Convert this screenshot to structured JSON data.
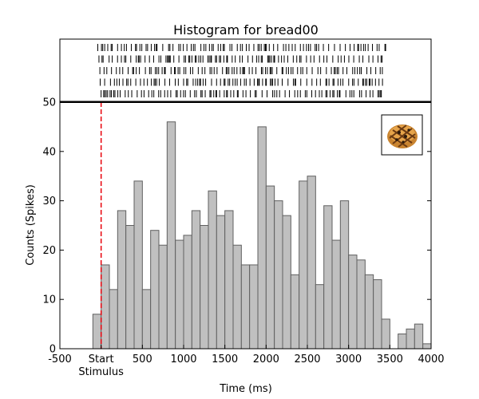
{
  "chart_data": {
    "type": "bar",
    "title": "Histogram for bread00",
    "xlabel": "Time (ms)",
    "ylabel": "Counts (Spikes)",
    "xlim": [
      -500,
      4000
    ],
    "ylim": [
      0,
      50
    ],
    "bin_width": 100,
    "x_ticks": [
      {
        "value": -500,
        "label": "-500"
      },
      {
        "value": 0,
        "label": "Start"
      },
      {
        "value": 500,
        "label": "500"
      },
      {
        "value": 1000,
        "label": "1000"
      },
      {
        "value": 1500,
        "label": "1500"
      },
      {
        "value": 2000,
        "label": "2000"
      },
      {
        "value": 2500,
        "label": "2500"
      },
      {
        "value": 3000,
        "label": "3000"
      },
      {
        "value": 3500,
        "label": "3500"
      },
      {
        "value": 4000,
        "label": "4000"
      }
    ],
    "x_sub_label": "Stimulus",
    "y_ticks": [
      0,
      10,
      20,
      30,
      40,
      50
    ],
    "stimulus_time": 0,
    "stimulus_line_color": "#e8000b",
    "bar_fill": "#c0c0c0",
    "bar_stroke": "#606060",
    "bins": [
      {
        "x": -100,
        "count": 7
      },
      {
        "x": 0,
        "count": 17
      },
      {
        "x": 100,
        "count": 12
      },
      {
        "x": 200,
        "count": 28
      },
      {
        "x": 300,
        "count": 25
      },
      {
        "x": 400,
        "count": 34
      },
      {
        "x": 500,
        "count": 12
      },
      {
        "x": 600,
        "count": 24
      },
      {
        "x": 700,
        "count": 21
      },
      {
        "x": 800,
        "count": 46
      },
      {
        "x": 900,
        "count": 22
      },
      {
        "x": 1000,
        "count": 23
      },
      {
        "x": 1100,
        "count": 28
      },
      {
        "x": 1200,
        "count": 25
      },
      {
        "x": 1300,
        "count": 32
      },
      {
        "x": 1400,
        "count": 27
      },
      {
        "x": 1500,
        "count": 28
      },
      {
        "x": 1600,
        "count": 21
      },
      {
        "x": 1700,
        "count": 17
      },
      {
        "x": 1800,
        "count": 17
      },
      {
        "x": 1900,
        "count": 45
      },
      {
        "x": 2000,
        "count": 33
      },
      {
        "x": 2100,
        "count": 30
      },
      {
        "x": 2200,
        "count": 27
      },
      {
        "x": 2300,
        "count": 15
      },
      {
        "x": 2400,
        "count": 34
      },
      {
        "x": 2500,
        "count": 35
      },
      {
        "x": 2600,
        "count": 13
      },
      {
        "x": 2700,
        "count": 29
      },
      {
        "x": 2800,
        "count": 22
      },
      {
        "x": 2900,
        "count": 30
      },
      {
        "x": 3000,
        "count": 19
      },
      {
        "x": 3100,
        "count": 18
      },
      {
        "x": 3200,
        "count": 15
      },
      {
        "x": 3300,
        "count": 14
      },
      {
        "x": 3400,
        "count": 6
      },
      {
        "x": 3500,
        "count": 0
      },
      {
        "x": 3600,
        "count": 3
      },
      {
        "x": 3700,
        "count": 4
      },
      {
        "x": 3800,
        "count": 5
      },
      {
        "x": 3900,
        "count": 1
      }
    ],
    "raster": {
      "trials": 5,
      "time_range": [
        -50,
        3450
      ],
      "tick_color": "#000000"
    },
    "stimulus_image": "bread-image"
  }
}
